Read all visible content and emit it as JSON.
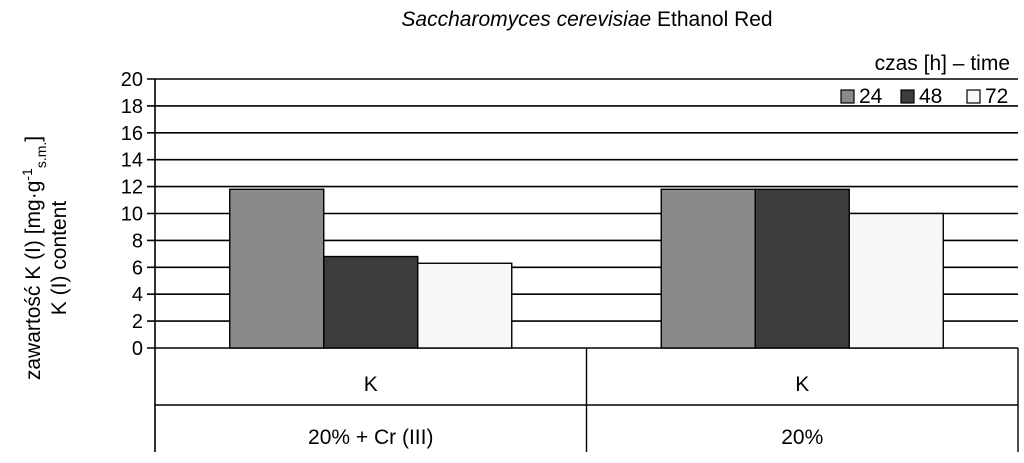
{
  "chart_data": {
    "type": "bar",
    "title_italic": "Saccharomyces cerevisiae",
    "title_rest": " Ethanol Red",
    "ylabel_line1": "zawartość K (I) [mg·g",
    "ylabel_sup": "-1",
    "ylabel_sub": "s.m.",
    "ylabel_close": "]",
    "ylabel_line2": "K (I) content",
    "ylim": [
      0,
      20
    ],
    "yticks": [
      0,
      2,
      4,
      6,
      8,
      10,
      12,
      14,
      16,
      18,
      20
    ],
    "grid": true,
    "legend_position": "top-right",
    "legend_title": "czas [h] – time",
    "groups": [
      {
        "label": "K",
        "category": "20% + Cr (III)"
      },
      {
        "label": "K",
        "category": "20%"
      }
    ],
    "series": [
      {
        "name": "24",
        "color": "#8a8a8a",
        "values": [
          11.8,
          11.8
        ]
      },
      {
        "name": "48",
        "color": "#3c3c3c",
        "values": [
          6.8,
          11.8
        ]
      },
      {
        "name": "72",
        "color": "#f7f7f7",
        "values": [
          6.3,
          10.0
        ]
      }
    ]
  }
}
